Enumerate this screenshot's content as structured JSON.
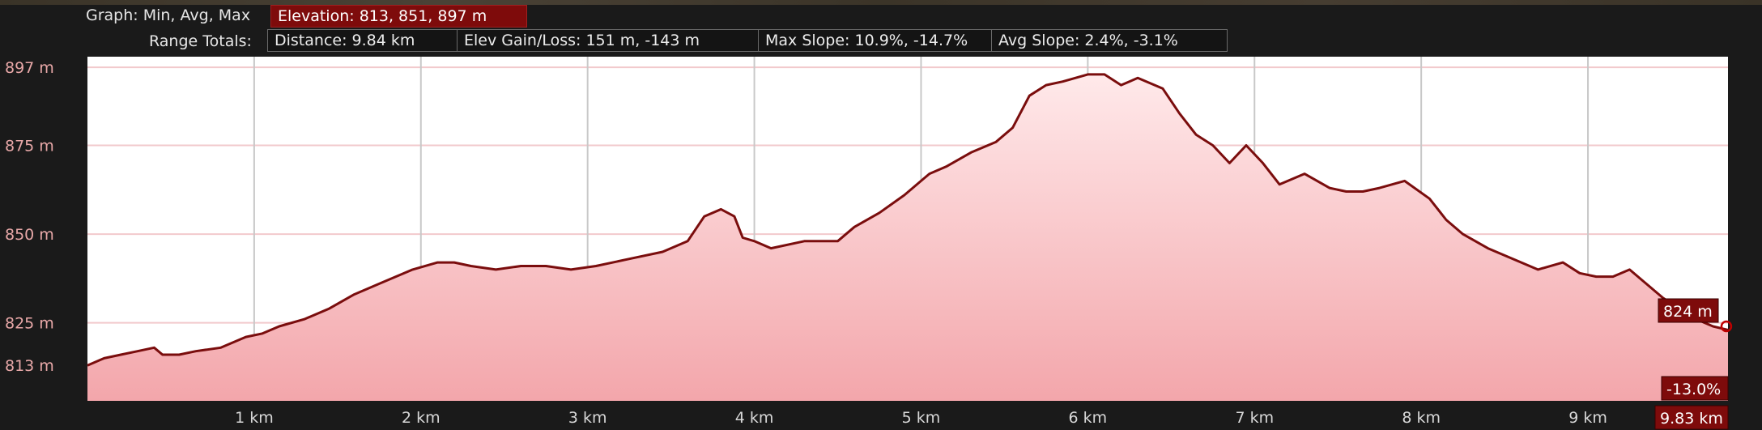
{
  "header": {
    "graph_label": "Graph: Min, Avg, Max",
    "elevation_box": "Elevation: 813, 851, 897 m",
    "range_label": "Range Totals:",
    "distance_box": "Distance: 9.84 km",
    "gain_loss_box": "Elev Gain/Loss: 151 m, -143 m",
    "max_slope_box": "Max Slope: 10.9%, -14.7%",
    "avg_slope_box": "Avg Slope: 2.4%, -3.1%"
  },
  "cursor": {
    "elevation_label": "824 m",
    "slope_label": "-13.0%",
    "distance_label": "9.83 km",
    "distance_km": 9.83,
    "elevation_m": 824
  },
  "colors": {
    "line": "#7a0d0d",
    "fill_top": "#ffe9ea",
    "fill_bottom": "#f3a6ab",
    "label_red": "#7e0b0b",
    "axis_text": "#e8a8a8"
  },
  "chart_data": {
    "type": "area",
    "title": "",
    "xlabel": "",
    "ylabel": "",
    "xlim": [
      0,
      9.84
    ],
    "ylim": [
      803,
      900
    ],
    "grid": true,
    "yticks": [
      813,
      825,
      850,
      875,
      897
    ],
    "ytick_labels": [
      "813 m",
      "825 m",
      "850 m",
      "875 m",
      "897 m"
    ],
    "xticks": [
      1,
      2,
      3,
      4,
      5,
      6,
      7,
      8,
      9
    ],
    "xtick_labels": [
      "1 km",
      "2 km",
      "3 km",
      "4 km",
      "5 km",
      "6 km",
      "7 km",
      "8 km",
      "9 km"
    ],
    "series": [
      {
        "x": [
          0,
          0.1,
          0.2,
          0.3,
          0.4,
          0.45,
          0.55,
          0.65,
          0.8,
          0.95,
          1.05,
          1.15,
          1.3,
          1.45,
          1.6,
          1.75,
          1.85,
          1.95,
          2.1,
          2.2,
          2.3,
          2.45,
          2.6,
          2.75,
          2.9,
          3.05,
          3.25,
          3.45,
          3.6,
          3.7,
          3.8,
          3.88,
          3.93,
          4.0,
          4.1,
          4.3,
          4.5,
          4.6,
          4.75,
          4.9,
          5.05,
          5.15,
          5.3,
          5.45,
          5.55,
          5.65,
          5.75,
          5.85,
          6.0,
          6.1,
          6.2,
          6.3,
          6.45,
          6.55,
          6.65,
          6.75,
          6.85,
          6.95,
          7.05,
          7.15,
          7.3,
          7.45,
          7.55,
          7.65,
          7.75,
          7.9,
          8.05,
          8.15,
          8.25,
          8.4,
          8.55,
          8.7,
          8.85,
          8.95,
          9.05,
          9.15,
          9.25,
          9.35,
          9.45,
          9.55,
          9.65,
          9.75,
          9.84
        ],
        "y": [
          813,
          815,
          816,
          817,
          818,
          816,
          816,
          817,
          818,
          821,
          822,
          824,
          826,
          829,
          833,
          836,
          838,
          840,
          842,
          842,
          841,
          840,
          841,
          841,
          840,
          841,
          843,
          845,
          848,
          855,
          857,
          855,
          849,
          848,
          846,
          848,
          848,
          852,
          856,
          861,
          867,
          869,
          873,
          876,
          880,
          889,
          892,
          893,
          895,
          895,
          892,
          894,
          891,
          884,
          878,
          875,
          870,
          875,
          870,
          864,
          867,
          863,
          862,
          862,
          863,
          865,
          860,
          854,
          850,
          846,
          843,
          840,
          842,
          839,
          838,
          838,
          840,
          836,
          832,
          829,
          826,
          824,
          823
        ]
      }
    ]
  }
}
